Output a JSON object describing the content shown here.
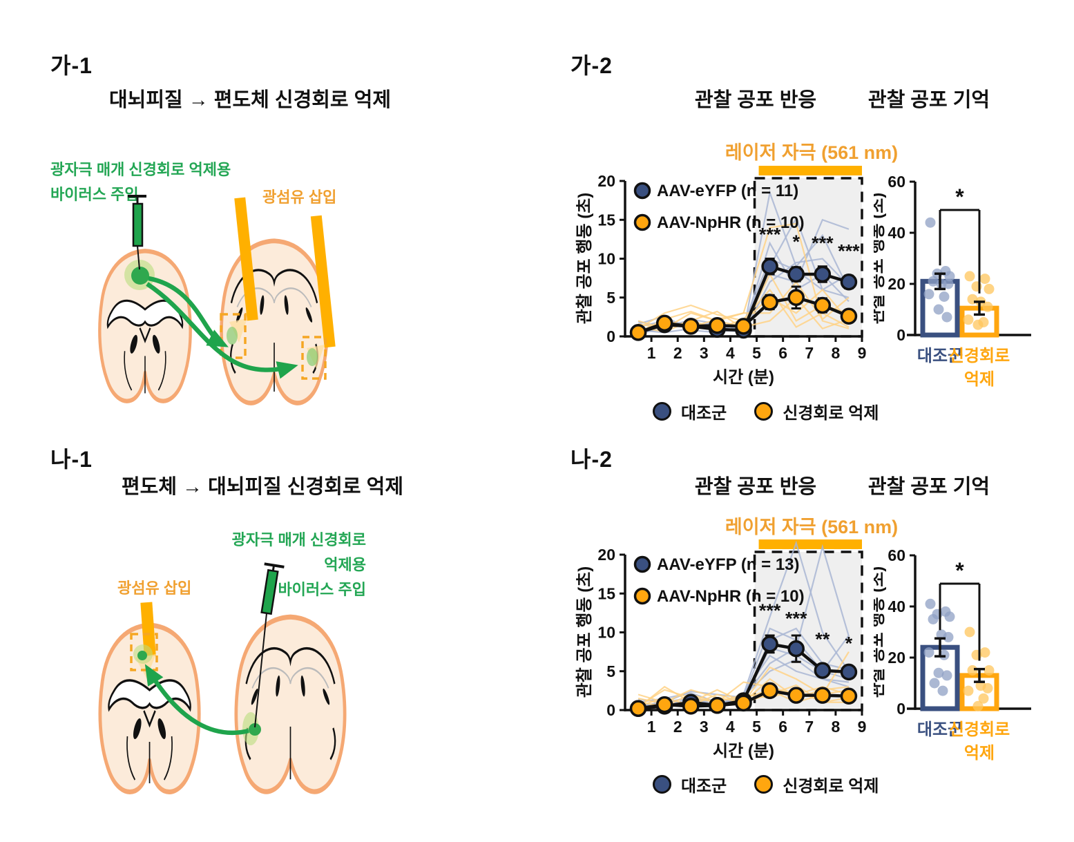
{
  "colors": {
    "navy": "#3A5080",
    "orange": "#FFA60F",
    "laser": "#FFB000",
    "orange_text": "#F0A030",
    "green": "#23A654",
    "trace_blue": "#A9B6D3",
    "trace_orange": "#FFD286",
    "scatter_blue": "#8FA0C4",
    "scatter_orange": "#FFC55C",
    "shade": "#EFEFEF"
  },
  "panels": {
    "ga1": {
      "label": "가-1",
      "title": "대뇌피질 → 편도체 신경회로 억제",
      "virus_line1": "광자극 매개 신경회로 억제용",
      "virus_line2": "바이러스 주입",
      "fiber_label": "광섬유 삽입"
    },
    "ga2": {
      "label": "가-2",
      "title_response": "관찰 공포 반응",
      "title_memory": "관찰 공포 기억",
      "laser_prefix": "레이저 자극 ",
      "laser_bold": "(561 nm)"
    },
    "na1": {
      "label": "나-1",
      "title": "편도체 → 대뇌피질 신경회로 억제",
      "virus_line1": "광자극 매개 신경회로 억제용",
      "virus_line2": "바이러스 주입",
      "fiber_label": "광섬유 삽입"
    },
    "na2": {
      "label": "나-2",
      "title_response": "관찰 공포 반응",
      "title_memory": "관찰 공포 기억",
      "laser_prefix": "레이저 자극 ",
      "laser_bold": "(561 nm)"
    }
  },
  "bottom_legend": {
    "control": "대조군",
    "inhibition": "신경회로 억제"
  },
  "chart_data": [
    {
      "id": "ga2-line",
      "type": "line",
      "title": "관찰 공포 반응",
      "xlabel": "시간 (분)",
      "ylabel": "관찰 공포 행동 (초)",
      "xlim": [
        0,
        9
      ],
      "ylim": [
        0,
        20
      ],
      "xticks": [
        1,
        2,
        3,
        4,
        5,
        6,
        7,
        8,
        9
      ],
      "yticks": [
        0,
        5,
        10,
        15,
        20
      ],
      "x": [
        0.5,
        1.5,
        2.5,
        3.5,
        4.5,
        5.5,
        6.5,
        7.5,
        8.5
      ],
      "laser": {
        "from": 5,
        "to": 9,
        "label": "레이저 자극 (561 nm)"
      },
      "series": [
        {
          "name": "AAV-eYFP (n = 11)",
          "color": "#3A5080",
          "values": [
            0.5,
            1.5,
            1.3,
            0.9,
            0.8,
            9.0,
            8.0,
            8.0,
            7.0
          ],
          "errors": [
            0.3,
            0.4,
            0.4,
            0.3,
            0.3,
            1.0,
            0.9,
            1.0,
            0.8
          ]
        },
        {
          "name": "AAV-NpHR (n = 10)",
          "color": "#FFA60F",
          "values": [
            0.5,
            1.7,
            1.3,
            1.4,
            1.3,
            4.4,
            5.0,
            4.0,
            2.6
          ],
          "errors": [
            0.2,
            0.4,
            0.4,
            0.4,
            0.3,
            0.9,
            1.4,
            0.9,
            0.6
          ]
        }
      ],
      "significance": [
        {
          "x": 5.5,
          "y": 12.3,
          "label": "***"
        },
        {
          "x": 6.5,
          "y": 11.4,
          "label": "*"
        },
        {
          "x": 7.5,
          "y": 11.2,
          "label": "***"
        },
        {
          "x": 8.5,
          "y": 10.2,
          "label": "***"
        }
      ],
      "individual_traces": [
        {
          "color": "#A9B6D3",
          "lines": [
            [
              1.2,
              2.0,
              1.5,
              0.8,
              0.6,
              18.5,
              9.0,
              13.0,
              6.0
            ],
            [
              0.4,
              1.0,
              2.2,
              1.6,
              1.0,
              9.0,
              15.2,
              6.0,
              8.0
            ],
            [
              1.6,
              2.6,
              0.8,
              0.5,
              1.2,
              8.0,
              7.0,
              15.0,
              13.8
            ],
            [
              0.5,
              1.4,
              2.0,
              1.0,
              1.4,
              10.0,
              8.5,
              6.0,
              5.0
            ],
            [
              0.8,
              0.5,
              1.0,
              2.0,
              0.4,
              7.0,
              9.5,
              10.0,
              6.5
            ],
            [
              1.9,
              1.2,
              1.6,
              0.6,
              0.9,
              12.0,
              6.0,
              8.0,
              4.5
            ]
          ]
        },
        {
          "color": "#FFD286",
          "lines": [
            [
              0.5,
              2.2,
              3.2,
              2.0,
              3.0,
              14.0,
              14.5,
              2.0,
              1.0
            ],
            [
              1.0,
              3.0,
              4.0,
              2.8,
              2.0,
              5.0,
              3.0,
              6.0,
              2.0
            ],
            [
              2.0,
              1.0,
              2.0,
              3.2,
              1.0,
              8.0,
              2.0,
              4.0,
              3.0
            ],
            [
              0.4,
              2.0,
              1.2,
              2.2,
              3.0,
              3.0,
              7.0,
              2.2,
              5.0
            ],
            [
              1.2,
              0.6,
              2.0,
              1.0,
              2.2,
              6.0,
              1.2,
              3.0,
              1.2
            ],
            [
              1.6,
              1.0,
              3.0,
              2.0,
              1.2,
              2.0,
              5.0,
              1.0,
              2.2
            ]
          ]
        }
      ]
    },
    {
      "id": "ga2-bar",
      "type": "bar",
      "title": "관찰 공포 기억",
      "ylabel": "관찰 공포 행동 (초)",
      "ylim": [
        0,
        60
      ],
      "yticks": [
        0,
        20,
        40,
        60
      ],
      "categories": [
        {
          "label": "대조군",
          "color": "#3A5080"
        },
        {
          "label": "신경회로 억제",
          "color": "#FFA60F"
        }
      ],
      "values": [
        21,
        10.5
      ],
      "errors": [
        3,
        2.5
      ],
      "significance": "*",
      "points": [
        [
          44,
          25,
          24,
          23,
          21,
          20,
          20,
          16,
          15,
          10,
          7
        ],
        [
          23,
          22,
          19,
          18,
          14,
          13,
          11,
          6,
          5,
          4
        ]
      ]
    },
    {
      "id": "na2-line",
      "type": "line",
      "title": "관찰 공포 반응",
      "xlabel": "시간 (분)",
      "ylabel": "관찰 공포 행동 (초)",
      "xlim": [
        0,
        9
      ],
      "ylim": [
        0,
        20
      ],
      "xticks": [
        1,
        2,
        3,
        4,
        5,
        6,
        7,
        8,
        9
      ],
      "yticks": [
        0,
        5,
        10,
        15,
        20
      ],
      "x": [
        0.5,
        1.5,
        2.5,
        3.5,
        4.5,
        5.5,
        6.5,
        7.5,
        8.5
      ],
      "laser": {
        "from": 5,
        "to": 9,
        "label": "레이저 자극 (561 nm)"
      },
      "series": [
        {
          "name": "AAV-eYFP (n = 13)",
          "color": "#3A5080",
          "values": [
            0.2,
            0.5,
            1.0,
            0.6,
            1.2,
            8.5,
            7.9,
            5.1,
            4.9
          ],
          "errors": [
            0.1,
            0.2,
            0.3,
            0.2,
            0.3,
            1.1,
            1.7,
            0.6,
            0.5
          ]
        },
        {
          "name": "AAV-NpHR (n = 10)",
          "color": "#FFA60F",
          "values": [
            0.2,
            0.7,
            0.5,
            0.6,
            0.9,
            2.5,
            1.9,
            1.9,
            1.8
          ],
          "errors": [
            0.1,
            0.3,
            0.2,
            0.2,
            0.3,
            0.5,
            0.4,
            0.4,
            0.4
          ]
        }
      ],
      "significance": [
        {
          "x": 5.5,
          "y": 12.0,
          "label": "***"
        },
        {
          "x": 6.5,
          "y": 11.0,
          "label": "***"
        },
        {
          "x": 7.5,
          "y": 8.3,
          "label": "**"
        },
        {
          "x": 8.5,
          "y": 7.8,
          "label": "*"
        }
      ],
      "individual_traces": [
        {
          "color": "#A9B6D3",
          "lines": [
            [
              0.5,
              1.0,
              1.6,
              1.0,
              2.0,
              12.0,
              21.5,
              10.0,
              5.0
            ],
            [
              0.2,
              0.6,
              1.0,
              0.5,
              1.6,
              10.5,
              9.0,
              5.0,
              4.0
            ],
            [
              1.0,
              1.5,
              2.2,
              1.0,
              1.2,
              9.0,
              10.5,
              6.0,
              5.2
            ],
            [
              0.5,
              1.0,
              0.6,
              1.5,
              1.0,
              8.0,
              7.0,
              5.0,
              9.6
            ],
            [
              0.2,
              0.4,
              1.6,
              0.6,
              2.2,
              7.0,
              5.0,
              4.0,
              3.0
            ],
            [
              1.4,
              1.0,
              2.4,
              2.0,
              1.6,
              6.0,
              8.0,
              21.0,
              9.5
            ],
            [
              0.3,
              1.2,
              0.8,
              0.6,
              1.8,
              5.0,
              6.5,
              4.0,
              3.6
            ]
          ]
        },
        {
          "color": "#FFD286",
          "lines": [
            [
              0.3,
              3.0,
              1.0,
              2.6,
              1.0,
              5.5,
              4.0,
              2.0,
              7.5
            ],
            [
              1.0,
              0.5,
              2.0,
              1.0,
              3.6,
              3.0,
              2.0,
              3.0,
              2.0
            ],
            [
              0.5,
              1.6,
              0.6,
              2.0,
              1.0,
              2.0,
              3.2,
              1.0,
              1.6
            ],
            [
              2.0,
              1.0,
              2.6,
              1.6,
              1.0,
              4.0,
              1.6,
              2.6,
              3.0
            ],
            [
              0.5,
              2.6,
              1.6,
              1.0,
              2.0,
              1.6,
              2.6,
              1.0,
              1.0
            ],
            [
              1.5,
              0.8,
              0.5,
              0.5,
              1.5,
              2.6,
              1.0,
              2.0,
              2.6
            ]
          ]
        }
      ]
    },
    {
      "id": "na2-bar",
      "type": "bar",
      "title": "관찰 공포 기억",
      "ylabel": "관찰 공포 행동 (초)",
      "ylim": [
        0,
        60
      ],
      "yticks": [
        0,
        20,
        40,
        60
      ],
      "categories": [
        {
          "label": "대조군",
          "color": "#3A5080"
        },
        {
          "label": "신경회로 억제",
          "color": "#FFA60F"
        }
      ],
      "values": [
        24,
        13
      ],
      "errors": [
        3.5,
        2.5
      ],
      "significance": "*",
      "points": [
        [
          41,
          38,
          37,
          36,
          35,
          29,
          28,
          22,
          21,
          14,
          13,
          10,
          7
        ],
        [
          30,
          22,
          21,
          15,
          15,
          9,
          8,
          7,
          4,
          1
        ]
      ]
    }
  ]
}
